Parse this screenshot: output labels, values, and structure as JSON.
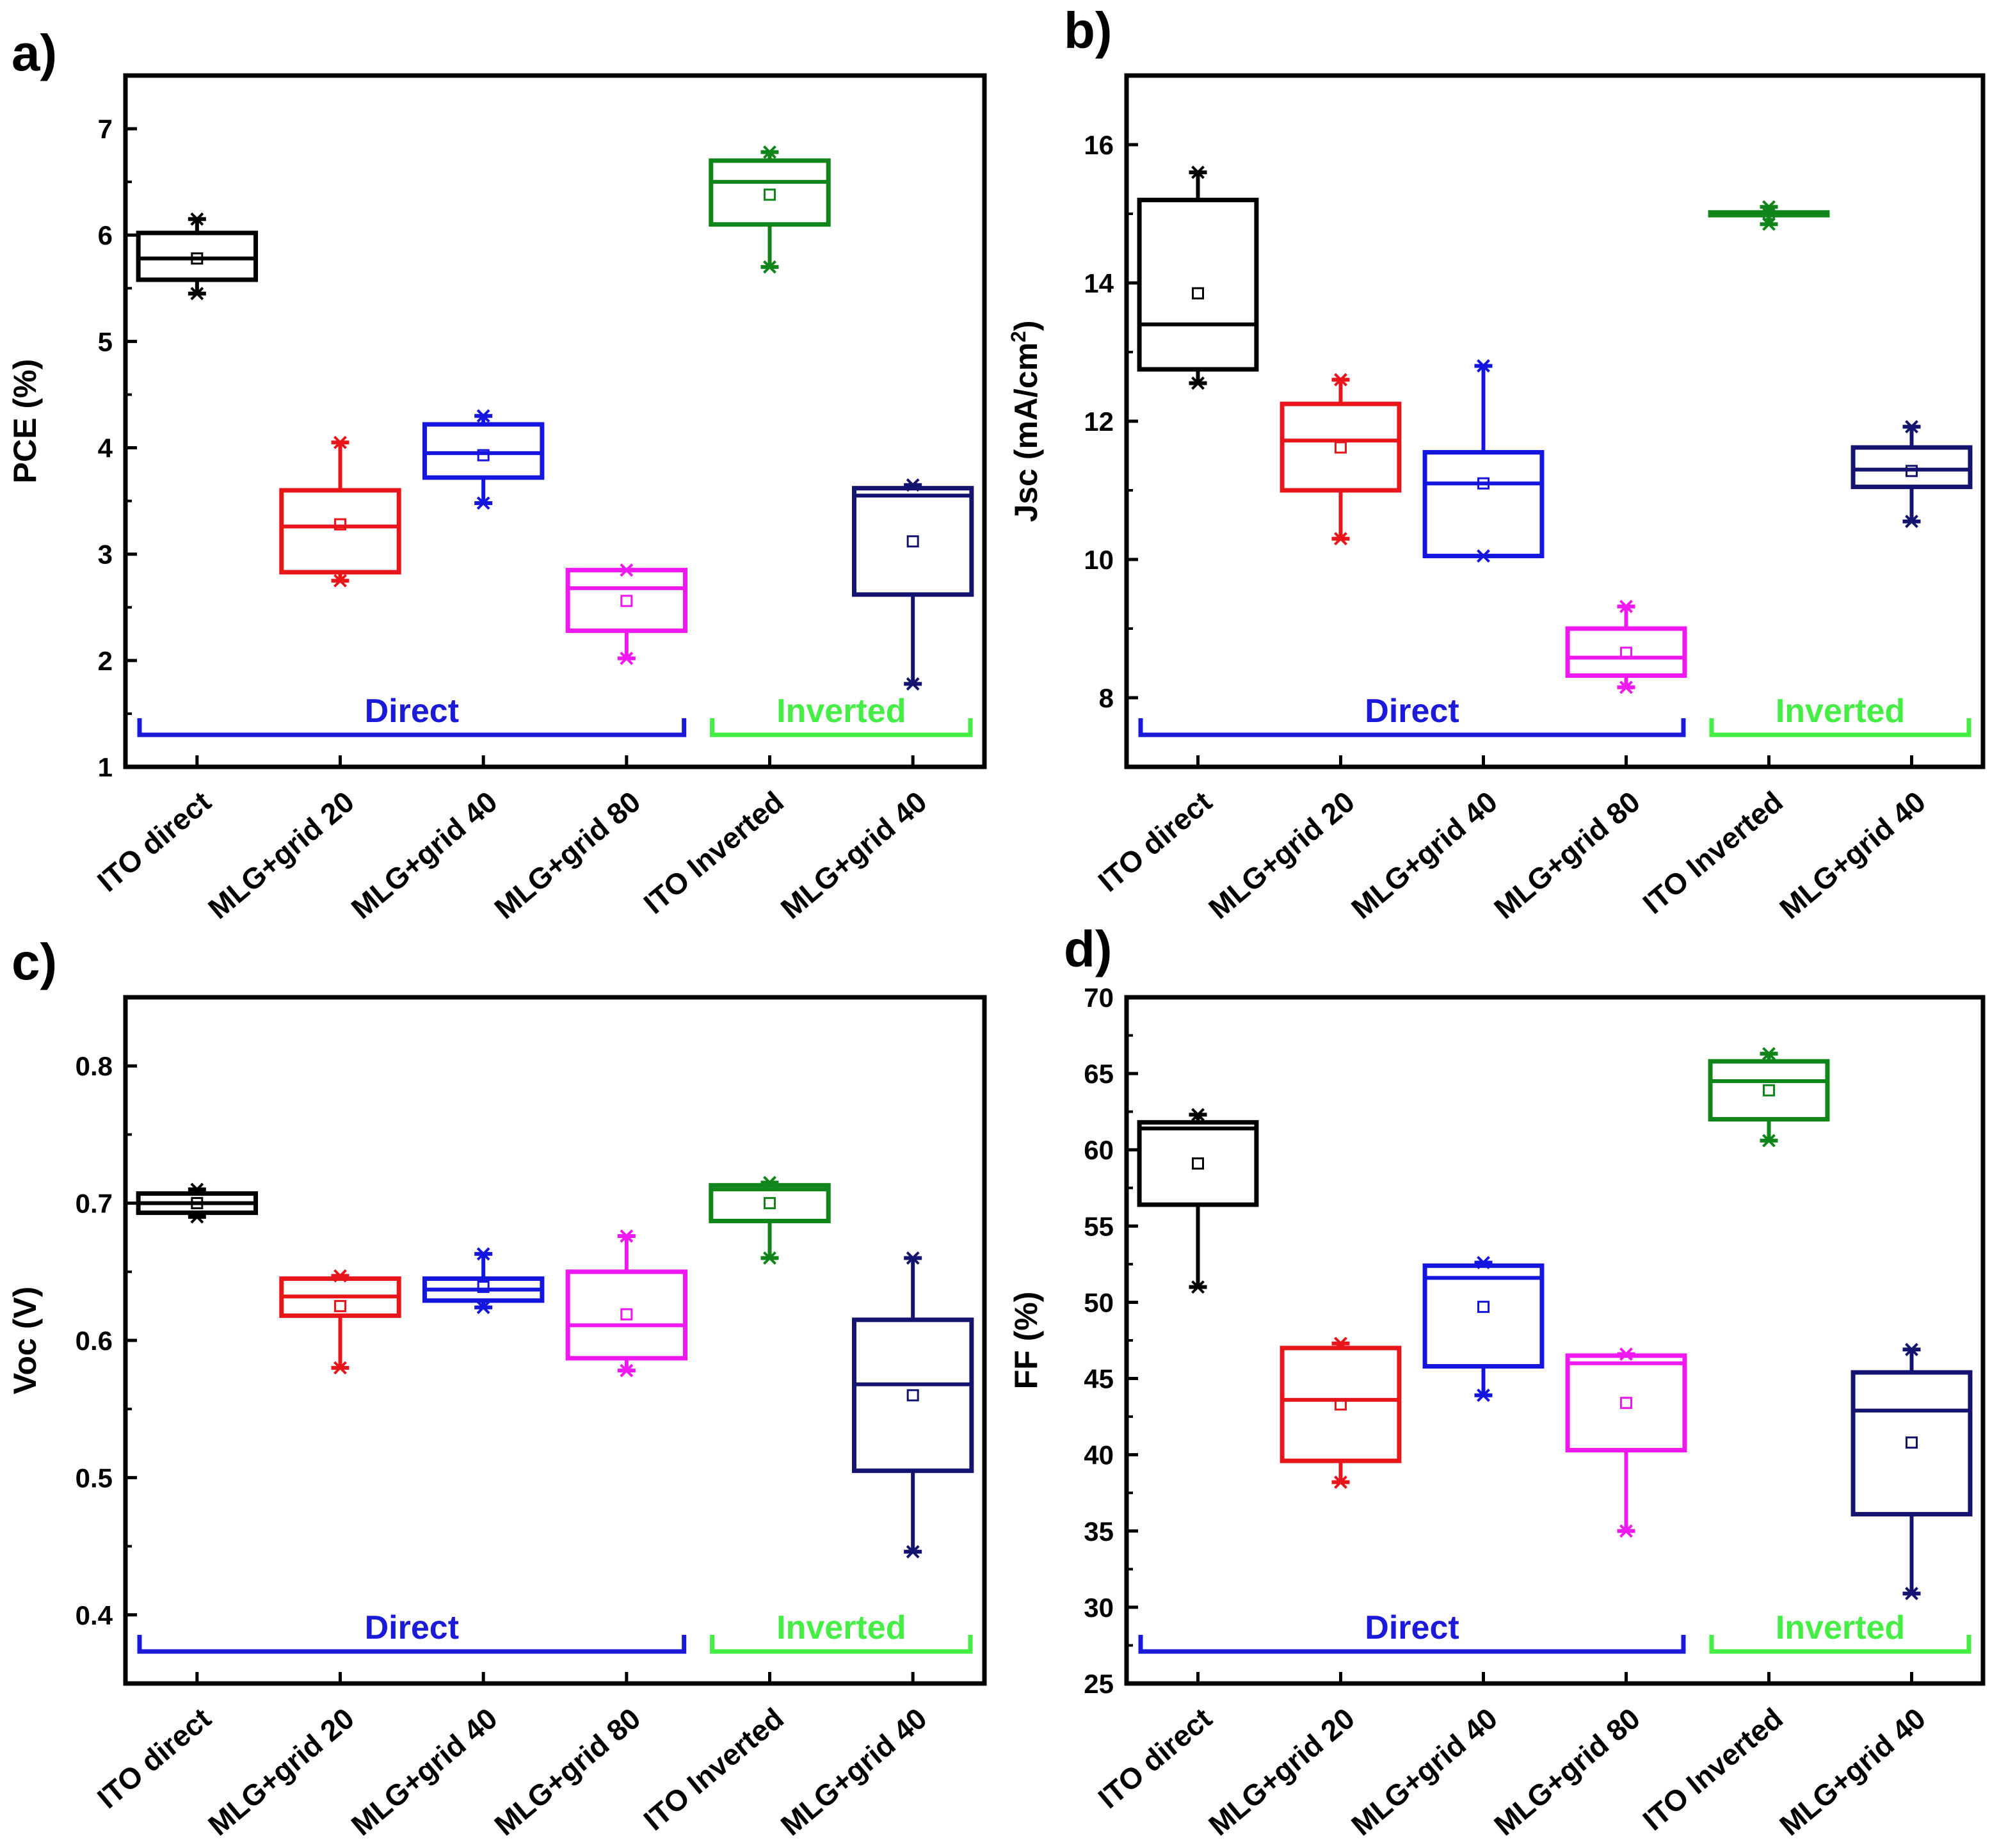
{
  "chart_data": [
    {
      "type": "box",
      "panel_label": "a)",
      "ylabel": "PCE (%)",
      "ylabel_parts": [
        "PCE (%)"
      ],
      "ylim": [
        1,
        7.5
      ],
      "yticks": [
        1,
        2,
        3,
        4,
        5,
        6,
        7
      ],
      "categories": [
        "ITO direct",
        "MLG+grid 20",
        "MLG+grid 40",
        "MLG+grid 80",
        "ITO Inverted",
        "MLG+grid 40"
      ],
      "colors": [
        "#000000",
        "#e8151b",
        "#1515e0",
        "#f018f0",
        "#10861a",
        "#141470"
      ],
      "groups": [
        {
          "label": "Direct",
          "color": "#1a1ad8",
          "from": 0,
          "to": 3
        },
        {
          "label": "Inverted",
          "color": "#44ee44",
          "from": 4,
          "to": 5
        }
      ],
      "boxes": [
        {
          "min": 5.45,
          "q1": 5.58,
          "median": 5.78,
          "q3": 6.02,
          "max": 6.15,
          "mean": 5.78
        },
        {
          "min": 2.75,
          "q1": 2.83,
          "median": 3.26,
          "q3": 3.6,
          "max": 4.05,
          "mean": 3.28
        },
        {
          "min": 3.48,
          "q1": 3.72,
          "median": 3.95,
          "q3": 4.22,
          "max": 4.3,
          "mean": 3.93
        },
        {
          "min": 2.02,
          "q1": 2.28,
          "median": 2.68,
          "q3": 2.85,
          "max": 2.85,
          "mean": 2.56
        },
        {
          "min": 5.7,
          "q1": 6.1,
          "median": 6.5,
          "q3": 6.7,
          "max": 6.78,
          "mean": 6.38
        },
        {
          "min": 1.78,
          "q1": 2.62,
          "median": 3.55,
          "q3": 3.62,
          "max": 3.65,
          "mean": 3.12
        }
      ]
    },
    {
      "type": "box",
      "panel_label": "b)",
      "ylabel": "Jsc (mA/cm2)",
      "ylabel_parts": [
        "Jsc (mA/cm",
        "2",
        ")"
      ],
      "ylim": [
        7,
        17
      ],
      "yticks": [
        8,
        10,
        12,
        14,
        16
      ],
      "categories": [
        "ITO direct",
        "MLG+grid 20",
        "MLG+grid 40",
        "MLG+grid 80",
        "ITO Inverted",
        "MLG+grid 40"
      ],
      "colors": [
        "#000000",
        "#e8151b",
        "#1515e0",
        "#f018f0",
        "#10861a",
        "#141470"
      ],
      "groups": [
        {
          "label": "Direct",
          "color": "#1a1ad8",
          "from": 0,
          "to": 3
        },
        {
          "label": "Inverted",
          "color": "#44ee44",
          "from": 4,
          "to": 5
        }
      ],
      "boxes": [
        {
          "min": 12.55,
          "q1": 12.75,
          "median": 13.4,
          "q3": 15.2,
          "max": 15.6,
          "mean": 13.85
        },
        {
          "min": 10.3,
          "q1": 11.0,
          "median": 11.72,
          "q3": 12.25,
          "max": 12.6,
          "mean": 11.62
        },
        {
          "min": 10.05,
          "q1": 10.05,
          "median": 11.1,
          "q3": 11.55,
          "max": 12.8,
          "mean": 11.1
        },
        {
          "min": 8.15,
          "q1": 8.32,
          "median": 8.58,
          "q3": 9.0,
          "max": 9.32,
          "mean": 8.65
        },
        {
          "min": 14.85,
          "q1": 14.98,
          "median": 15.0,
          "q3": 15.02,
          "max": 15.1,
          "mean": 15.0
        },
        {
          "min": 10.55,
          "q1": 11.05,
          "median": 11.3,
          "q3": 11.62,
          "max": 11.92,
          "mean": 11.28
        }
      ]
    },
    {
      "type": "box",
      "panel_label": "c)",
      "ylabel": "Voc (V)",
      "ylabel_parts": [
        "Voc (V)"
      ],
      "ylim": [
        0.35,
        0.85
      ],
      "yticks": [
        0.4,
        0.5,
        0.6,
        0.7,
        0.8
      ],
      "categories": [
        "ITO direct",
        "MLG+grid 20",
        "MLG+grid 40",
        "MLG+grid 80",
        "ITO Inverted",
        "MLG+grid 40"
      ],
      "colors": [
        "#000000",
        "#e8151b",
        "#1515e0",
        "#f018f0",
        "#10861a",
        "#141470"
      ],
      "groups": [
        {
          "label": "Direct",
          "color": "#1a1ad8",
          "from": 0,
          "to": 3
        },
        {
          "label": "Inverted",
          "color": "#44ee44",
          "from": 4,
          "to": 5
        }
      ],
      "boxes": [
        {
          "min": 0.69,
          "q1": 0.693,
          "median": 0.7,
          "q3": 0.707,
          "max": 0.71,
          "mean": 0.7
        },
        {
          "min": 0.58,
          "q1": 0.618,
          "median": 0.632,
          "q3": 0.645,
          "max": 0.647,
          "mean": 0.625
        },
        {
          "min": 0.624,
          "q1": 0.629,
          "median": 0.637,
          "q3": 0.645,
          "max": 0.663,
          "mean": 0.639
        },
        {
          "min": 0.578,
          "q1": 0.587,
          "median": 0.611,
          "q3": 0.65,
          "max": 0.676,
          "mean": 0.619
        },
        {
          "min": 0.66,
          "q1": 0.687,
          "median": 0.71,
          "q3": 0.713,
          "max": 0.715,
          "mean": 0.7
        },
        {
          "min": 0.446,
          "q1": 0.505,
          "median": 0.568,
          "q3": 0.615,
          "max": 0.66,
          "mean": 0.56
        }
      ]
    },
    {
      "type": "box",
      "panel_label": "d)",
      "ylabel": "FF (%)",
      "ylabel_parts": [
        "FF (%)"
      ],
      "ylim": [
        25,
        70
      ],
      "yticks": [
        25,
        30,
        35,
        40,
        45,
        50,
        55,
        60,
        65,
        70
      ],
      "categories": [
        "ITO direct",
        "MLG+grid 20",
        "MLG+grid 40",
        "MLG+grid 80",
        "ITO Inverted",
        "MLG+grid 40"
      ],
      "colors": [
        "#000000",
        "#e8151b",
        "#1515e0",
        "#f018f0",
        "#10861a",
        "#141470"
      ],
      "groups": [
        {
          "label": "Direct",
          "color": "#1a1ad8",
          "from": 0,
          "to": 3
        },
        {
          "label": "Inverted",
          "color": "#44ee44",
          "from": 4,
          "to": 5
        }
      ],
      "boxes": [
        {
          "min": 51.0,
          "q1": 56.4,
          "median": 61.4,
          "q3": 61.8,
          "max": 62.3,
          "mean": 59.1
        },
        {
          "min": 38.2,
          "q1": 39.6,
          "median": 43.6,
          "q3": 47.0,
          "max": 47.3,
          "mean": 43.3
        },
        {
          "min": 43.9,
          "q1": 45.8,
          "median": 51.6,
          "q3": 52.4,
          "max": 52.6,
          "mean": 49.7
        },
        {
          "min": 35.0,
          "q1": 40.3,
          "median": 46.0,
          "q3": 46.5,
          "max": 46.6,
          "mean": 43.4
        },
        {
          "min": 60.6,
          "q1": 62.0,
          "median": 64.5,
          "q3": 65.8,
          "max": 66.3,
          "mean": 63.9
        },
        {
          "min": 30.9,
          "q1": 36.1,
          "median": 42.9,
          "q3": 45.4,
          "max": 46.9,
          "mean": 40.8
        }
      ]
    }
  ]
}
